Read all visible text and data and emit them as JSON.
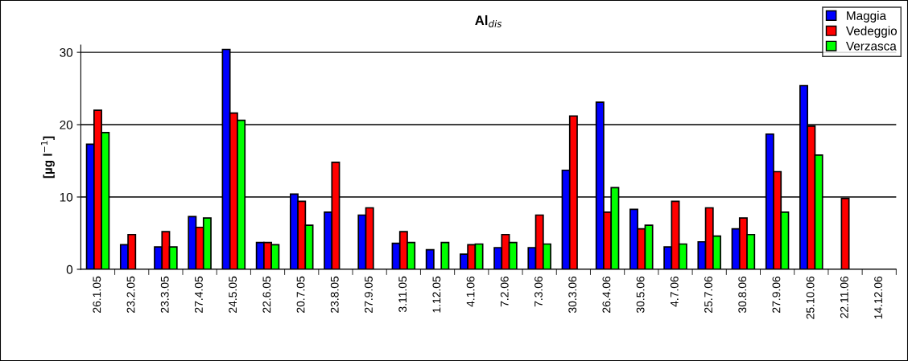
{
  "chart_data": {
    "type": "bar",
    "title": "Al$_{dis}$",
    "ylabel": "[µg l$^{−1}$]",
    "categories": [
      "26.1.05",
      "23.2.05",
      "23.3.05",
      "27.4.05",
      "24.5.05",
      "22.6.05",
      "20.7.05",
      "23.8.05",
      "27.9.05",
      "3.11.05",
      "1.12.05",
      "4.1.06",
      "7.2.06",
      "7.3.06",
      "30.3.06",
      "26.4.06",
      "30.5.06",
      "4.7.06",
      "25.7.06",
      "30.8.06",
      "27.9.06",
      "25.10.06",
      "22.11.06",
      "14.12.06"
    ],
    "series": [
      {
        "name": "Maggia",
        "color": "#0000ff",
        "values": [
          17.3,
          3.4,
          3.1,
          7.3,
          30.4,
          3.7,
          10.4,
          7.9,
          7.5,
          3.6,
          2.7,
          2.1,
          3.0,
          3.0,
          13.7,
          23.1,
          8.3,
          3.1,
          3.8,
          5.6,
          18.7,
          25.4,
          null,
          null
        ]
      },
      {
        "name": "Vedeggio",
        "color": "#ff0000",
        "values": [
          22.0,
          4.8,
          5.2,
          5.8,
          21.6,
          3.7,
          9.4,
          14.8,
          8.5,
          5.2,
          null,
          3.4,
          4.8,
          7.5,
          21.2,
          7.9,
          5.6,
          9.4,
          8.5,
          7.1,
          13.5,
          19.8,
          9.8,
          null
        ]
      },
      {
        "name": "Verzasca",
        "color": "#00ff00",
        "values": [
          18.9,
          null,
          3.1,
          7.1,
          20.6,
          3.4,
          6.1,
          null,
          null,
          3.7,
          3.7,
          3.5,
          3.7,
          3.5,
          null,
          11.3,
          6.1,
          3.5,
          4.6,
          4.8,
          7.9,
          15.8,
          null,
          null
        ]
      }
    ],
    "ylim": [
      0,
      31
    ],
    "yticks": [
      0,
      10,
      20,
      30
    ],
    "grid": "y",
    "legend": "top right"
  }
}
